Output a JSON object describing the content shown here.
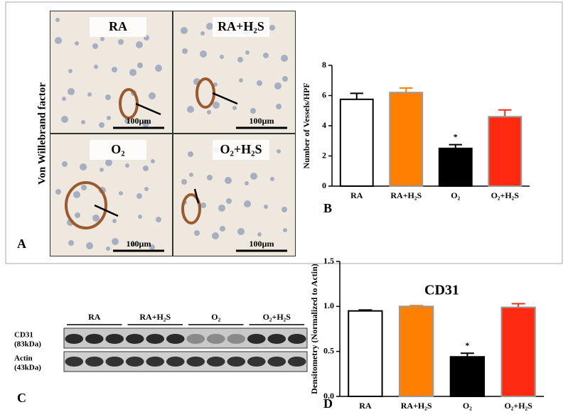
{
  "figure": {
    "panel_a": {
      "label": "A",
      "side_label": "Von Willebrand factor",
      "tiles": [
        {
          "title": "RA",
          "scale": "100µm"
        },
        {
          "title": "RA+H₂S",
          "scale": "100µm"
        },
        {
          "title": "O₂",
          "scale": "100µm"
        },
        {
          "title": "O₂+H₂S",
          "scale": "100µm"
        }
      ]
    },
    "panel_c": {
      "label": "C",
      "groups": [
        "RA",
        "RA+H₂S",
        "O₂",
        "O₂+H₂S"
      ],
      "rows": [
        {
          "name": "CD31",
          "size": "(83kDa)"
        },
        {
          "name": "Actin",
          "size": "(43kDa)"
        }
      ]
    }
  },
  "chart_data": [
    {
      "type": "bar",
      "label": "B",
      "ylabel": "Number of Vessels/HPF",
      "categories": [
        "RA",
        "RA+H₂S",
        "O₂",
        "O₂+H₂S"
      ],
      "series": [
        {
          "values": [
            5.75,
            6.2,
            2.5,
            4.6
          ],
          "errors": [
            0.4,
            0.3,
            0.25,
            0.45
          ],
          "colors": [
            "#ffffff",
            "#ff8000",
            "#000000",
            "#ff2a10"
          ]
        }
      ],
      "annotations": [
        {
          "text": "*",
          "category": "O₂"
        }
      ],
      "ylim": [
        0,
        8
      ],
      "yticks": [
        0,
        2,
        4,
        6,
        8
      ]
    },
    {
      "type": "bar",
      "label": "D",
      "title": "CD31",
      "ylabel": "Densitometry (Normalized to Actin)",
      "categories": [
        "RA",
        "RA+H₂S",
        "O₂",
        "O₂+H₂S"
      ],
      "series": [
        {
          "values": [
            0.95,
            1.0,
            0.44,
            0.99
          ],
          "errors": [
            0.01,
            0.01,
            0.04,
            0.04
          ],
          "colors": [
            "#ffffff",
            "#ff8000",
            "#000000",
            "#ff2a10"
          ]
        }
      ],
      "annotations": [
        {
          "text": "*",
          "category": "O₂"
        }
      ],
      "ylim": [
        0,
        1.5
      ],
      "yticks": [
        {
          "value": 0,
          "label": "0.0"
        },
        0.5,
        {
          "value": 1,
          "label": "1.0"
        },
        1.5
      ]
    }
  ]
}
